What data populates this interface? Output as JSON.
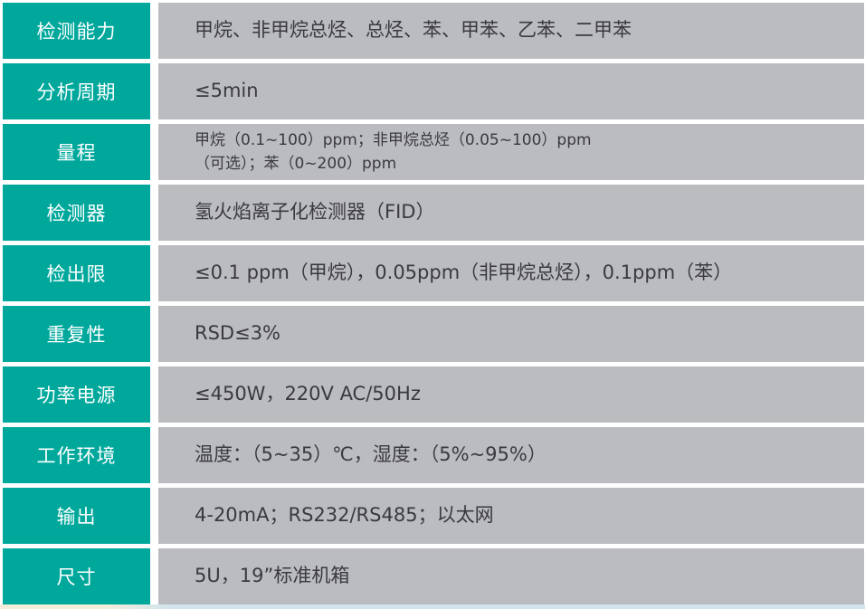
{
  "table": {
    "rows": [
      {
        "label": "检测能力",
        "value": "甲烷、非甲烷总烃、总烃、苯、甲苯、乙苯、二甲苯",
        "size": "normal"
      },
      {
        "label": "分析周期",
        "value": "≤5min",
        "size": "normal"
      },
      {
        "label": "量程",
        "value": "甲烷（0.1~100）ppm；非甲烷总烃（0.05~100）ppm\n（可选）；苯（0~200）ppm",
        "size": "small"
      },
      {
        "label": "检测器",
        "value": "氢火焰离子化检测器（FID）",
        "size": "normal"
      },
      {
        "label": "检出限",
        "value": "≤0.1 ppm（甲烷），0.05ppm（非甲烷总烃），0.1ppm（苯）",
        "size": "normal"
      },
      {
        "label": "重复性",
        "value": "RSD≤3%",
        "size": "normal"
      },
      {
        "label": "功率电源",
        "value": "≤450W，220V AC/50Hz",
        "size": "normal"
      },
      {
        "label": "工作环境",
        "value": "温度：（5~35）℃，湿度：（5%~95%）",
        "size": "normal"
      },
      {
        "label": "输出",
        "value": "4-20mA；RS232/RS485；以太网",
        "size": "normal"
      },
      {
        "label": "尺寸",
        "value": "5U，19”标准机箱",
        "size": "normal"
      }
    ]
  },
  "colors": {
    "label_bg": "#00a89c",
    "value_bg": "#bbbcc0",
    "separator": "#ffffff",
    "label_text": "#ffffff",
    "value_text": "#3a3a3e",
    "bottom_strip_blue": "#cfe4ee",
    "bottom_strip_cream": "#f3eeda"
  }
}
